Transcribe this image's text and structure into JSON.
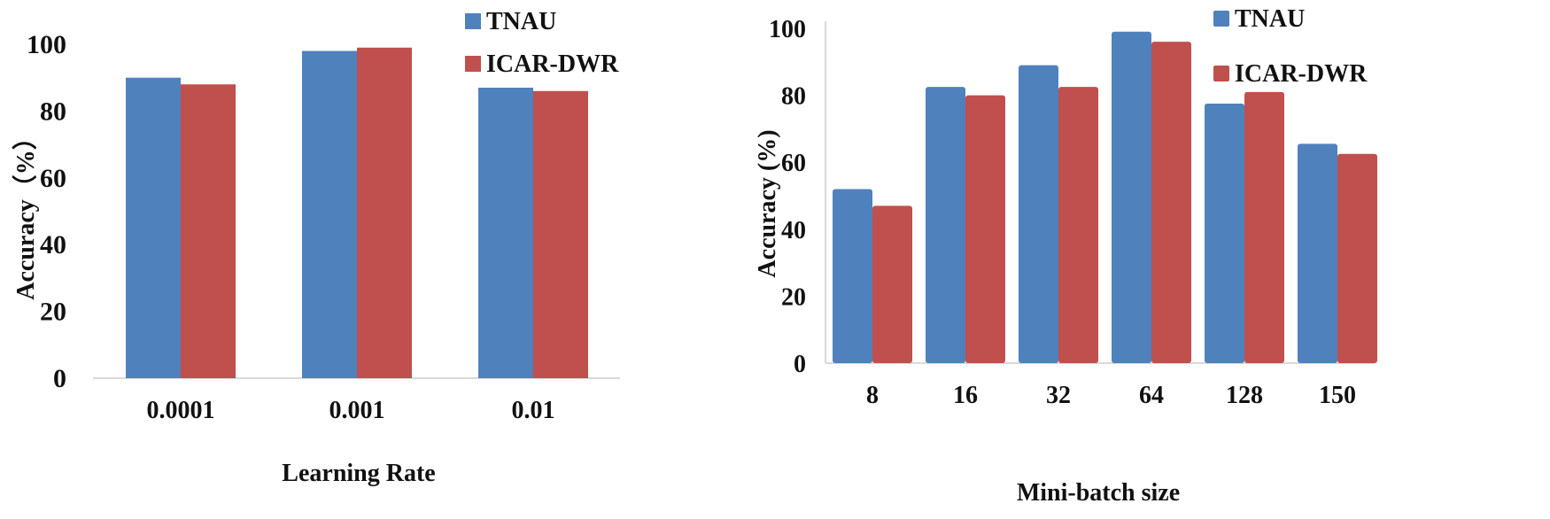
{
  "chart_data": [
    {
      "type": "bar",
      "title": "",
      "xlabel": "Learning Rate",
      "ylabel": "Accuracy（%）",
      "categories": [
        "0.0001",
        "0.001",
        "0.01"
      ],
      "series": [
        {
          "name": "TNAU",
          "values": [
            90,
            98,
            87
          ],
          "color": "#4F81BD"
        },
        {
          "name": "ICAR-DWR",
          "values": [
            88,
            99,
            86
          ],
          "color": "#C0504D"
        }
      ],
      "ylim": [
        0,
        100
      ],
      "yticks": [
        "0",
        "20",
        "40",
        "60",
        "80",
        "100"
      ],
      "grid": false,
      "legend": "top-right"
    },
    {
      "type": "bar",
      "title": "",
      "xlabel": "Mini-batch size",
      "ylabel": "Accuracy (%)",
      "categories": [
        "8",
        "16",
        "32",
        "64",
        "128",
        "150"
      ],
      "series": [
        {
          "name": "TNAU",
          "values": [
            52,
            82.5,
            89,
            99,
            77.5,
            65.5
          ],
          "color": "#4F81BD"
        },
        {
          "name": "ICAR-DWR",
          "values": [
            47,
            80,
            82.5,
            96,
            81,
            62.5
          ],
          "color": "#C0504D"
        }
      ],
      "ylim": [
        0,
        100
      ],
      "yticks": [
        "0",
        "20",
        "40",
        "60",
        "80",
        "100"
      ],
      "grid": false,
      "legend": "top-right"
    }
  ]
}
